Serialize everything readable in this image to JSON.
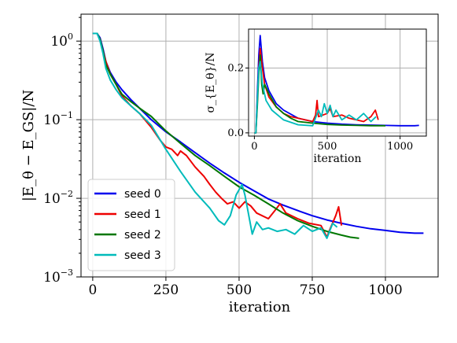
{
  "chart_data": [
    {
      "type": "line",
      "ylabel": "|E_θ − E_GS|/N",
      "xlabel": "iteration",
      "y_scale": "log",
      "xlim": [
        -40,
        1180
      ],
      "ylim": [
        0.001,
        2.2
      ],
      "xticks": [
        "0",
        "250",
        "500",
        "750",
        "1000"
      ],
      "yticks": [
        {
          "base": "10",
          "exp": "0"
        },
        {
          "base": "10",
          "exp": "−1"
        },
        {
          "base": "10",
          "exp": "−2"
        },
        {
          "base": "10",
          "exp": "−3"
        }
      ],
      "grid": true,
      "legend_position": "lower-left",
      "series": [
        {
          "name": "seed 0",
          "color": "#0000ee",
          "points": [
            [
              0,
              1.25
            ],
            [
              15,
              1.25
            ],
            [
              25,
              1.1
            ],
            [
              35,
              0.8
            ],
            [
              45,
              0.55
            ],
            [
              60,
              0.4
            ],
            [
              80,
              0.3
            ],
            [
              100,
              0.24
            ],
            [
              130,
              0.18
            ],
            [
              160,
              0.14
            ],
            [
              200,
              0.1
            ],
            [
              250,
              0.07
            ],
            [
              300,
              0.052
            ],
            [
              350,
              0.038
            ],
            [
              400,
              0.028
            ],
            [
              450,
              0.021
            ],
            [
              500,
              0.016
            ],
            [
              550,
              0.0125
            ],
            [
              600,
              0.0098
            ],
            [
              650,
              0.0082
            ],
            [
              700,
              0.007
            ],
            [
              750,
              0.006
            ],
            [
              800,
              0.0053
            ],
            [
              850,
              0.0048
            ],
            [
              900,
              0.0044
            ],
            [
              950,
              0.0041
            ],
            [
              1000,
              0.0039
            ],
            [
              1050,
              0.0037
            ],
            [
              1100,
              0.0036
            ],
            [
              1130,
              0.0036
            ]
          ]
        },
        {
          "name": "seed 1",
          "color": "#ee0000",
          "points": [
            [
              0,
              1.25
            ],
            [
              15,
              1.25
            ],
            [
              25,
              1.05
            ],
            [
              35,
              0.75
            ],
            [
              45,
              0.55
            ],
            [
              60,
              0.38
            ],
            [
              80,
              0.28
            ],
            [
              100,
              0.2
            ],
            [
              130,
              0.15
            ],
            [
              160,
              0.12
            ],
            [
              200,
              0.08
            ],
            [
              230,
              0.055
            ],
            [
              250,
              0.045
            ],
            [
              270,
              0.042
            ],
            [
              290,
              0.035
            ],
            [
              300,
              0.04
            ],
            [
              320,
              0.035
            ],
            [
              350,
              0.025
            ],
            [
              380,
              0.019
            ],
            [
              400,
              0.015
            ],
            [
              420,
              0.012
            ],
            [
              440,
              0.01
            ],
            [
              460,
              0.0085
            ],
            [
              480,
              0.009
            ],
            [
              500,
              0.0075
            ],
            [
              520,
              0.009
            ],
            [
              540,
              0.008
            ],
            [
              560,
              0.0065
            ],
            [
              600,
              0.0055
            ],
            [
              620,
              0.0068
            ],
            [
              640,
              0.0085
            ],
            [
              660,
              0.0065
            ],
            [
              700,
              0.0055
            ],
            [
              740,
              0.0048
            ],
            [
              780,
              0.0045
            ],
            [
              800,
              0.0032
            ],
            [
              810,
              0.004
            ],
            [
              830,
              0.006
            ],
            [
              840,
              0.0078
            ],
            [
              850,
              0.0045
            ]
          ]
        },
        {
          "name": "seed 2",
          "color": "#007700",
          "points": [
            [
              0,
              1.25
            ],
            [
              15,
              1.25
            ],
            [
              25,
              1.05
            ],
            [
              35,
              0.75
            ],
            [
              45,
              0.5
            ],
            [
              60,
              0.38
            ],
            [
              80,
              0.28
            ],
            [
              100,
              0.21
            ],
            [
              130,
              0.17
            ],
            [
              160,
              0.14
            ],
            [
              200,
              0.11
            ],
            [
              250,
              0.072
            ],
            [
              300,
              0.05
            ],
            [
              350,
              0.035
            ],
            [
              400,
              0.026
            ],
            [
              450,
              0.019
            ],
            [
              500,
              0.014
            ],
            [
              550,
              0.011
            ],
            [
              600,
              0.0085
            ],
            [
              650,
              0.0065
            ],
            [
              700,
              0.0052
            ],
            [
              750,
              0.0044
            ],
            [
              800,
              0.0038
            ],
            [
              850,
              0.0034
            ],
            [
              880,
              0.0032
            ],
            [
              910,
              0.0031
            ]
          ]
        },
        {
          "name": "seed 3",
          "color": "#00bbbb",
          "points": [
            [
              0,
              1.25
            ],
            [
              15,
              1.25
            ],
            [
              25,
              1.0
            ],
            [
              35,
              0.7
            ],
            [
              45,
              0.45
            ],
            [
              60,
              0.32
            ],
            [
              80,
              0.24
            ],
            [
              100,
              0.19
            ],
            [
              130,
              0.15
            ],
            [
              160,
              0.12
            ],
            [
              200,
              0.085
            ],
            [
              250,
              0.042
            ],
            [
              300,
              0.022
            ],
            [
              350,
              0.012
            ],
            [
              400,
              0.0075
            ],
            [
              430,
              0.0052
            ],
            [
              450,
              0.0046
            ],
            [
              470,
              0.006
            ],
            [
              490,
              0.011
            ],
            [
              510,
              0.015
            ],
            [
              520,
              0.011
            ],
            [
              530,
              0.007
            ],
            [
              545,
              0.0035
            ],
            [
              560,
              0.005
            ],
            [
              580,
              0.004
            ],
            [
              600,
              0.0042
            ],
            [
              630,
              0.0038
            ],
            [
              660,
              0.004
            ],
            [
              690,
              0.0035
            ],
            [
              720,
              0.0045
            ],
            [
              750,
              0.0038
            ],
            [
              780,
              0.0042
            ],
            [
              800,
              0.0031
            ],
            [
              820,
              0.0048
            ],
            [
              835,
              0.0043
            ]
          ]
        }
      ]
    },
    {
      "type": "line",
      "ylabel": "σ_{E_θ}/N",
      "xlabel": "iteration",
      "xlim": [
        -40,
        1180
      ],
      "ylim": [
        -0.01,
        0.32
      ],
      "xticks": [
        "0",
        "500",
        "1000"
      ],
      "yticks": [
        "0.0",
        "0.2"
      ],
      "grid": true,
      "series": [
        {
          "name": "seed 0",
          "color": "#0000ee",
          "points": [
            [
              0,
              0
            ],
            [
              10,
              0
            ],
            [
              20,
              0.12
            ],
            [
              30,
              0.24
            ],
            [
              40,
              0.3
            ],
            [
              55,
              0.22
            ],
            [
              70,
              0.17
            ],
            [
              100,
              0.13
            ],
            [
              150,
              0.09
            ],
            [
              200,
              0.07
            ],
            [
              300,
              0.045
            ],
            [
              400,
              0.035
            ],
            [
              500,
              0.03
            ],
            [
              600,
              0.027
            ],
            [
              700,
              0.025
            ],
            [
              800,
              0.024
            ],
            [
              900,
              0.023
            ],
            [
              1000,
              0.022
            ],
            [
              1100,
              0.022
            ],
            [
              1130,
              0.023
            ]
          ]
        },
        {
          "name": "seed 1",
          "color": "#ee0000",
          "points": [
            [
              0,
              0
            ],
            [
              10,
              0
            ],
            [
              20,
              0.1
            ],
            [
              30,
              0.2
            ],
            [
              40,
              0.26
            ],
            [
              55,
              0.2
            ],
            [
              70,
              0.15
            ],
            [
              100,
              0.11
            ],
            [
              150,
              0.08
            ],
            [
              200,
              0.06
            ],
            [
              250,
              0.05
            ],
            [
              300,
              0.045
            ],
            [
              350,
              0.04
            ],
            [
              400,
              0.035
            ],
            [
              420,
              0.055
            ],
            [
              430,
              0.1
            ],
            [
              440,
              0.05
            ],
            [
              500,
              0.06
            ],
            [
              520,
              0.075
            ],
            [
              540,
              0.05
            ],
            [
              600,
              0.055
            ],
            [
              650,
              0.045
            ],
            [
              700,
              0.04
            ],
            [
              750,
              0.035
            ],
            [
              800,
              0.05
            ],
            [
              830,
              0.07
            ],
            [
              850,
              0.04
            ]
          ]
        },
        {
          "name": "seed 2",
          "color": "#007700",
          "points": [
            [
              0,
              0
            ],
            [
              10,
              0
            ],
            [
              20,
              0.08
            ],
            [
              30,
              0.18
            ],
            [
              40,
              0.24
            ],
            [
              50,
              0.15
            ],
            [
              60,
              0.12
            ],
            [
              70,
              0.15
            ],
            [
              100,
              0.12
            ],
            [
              150,
              0.08
            ],
            [
              200,
              0.06
            ],
            [
              250,
              0.045
            ],
            [
              300,
              0.035
            ],
            [
              400,
              0.03
            ],
            [
              500,
              0.026
            ],
            [
              600,
              0.024
            ],
            [
              700,
              0.023
            ],
            [
              800,
              0.022
            ],
            [
              900,
              0.022
            ]
          ]
        },
        {
          "name": "seed 3",
          "color": "#00bbbb",
          "points": [
            [
              0,
              0
            ],
            [
              10,
              0
            ],
            [
              20,
              0.1
            ],
            [
              30,
              0.2
            ],
            [
              40,
              0.22
            ],
            [
              55,
              0.15
            ],
            [
              80,
              0.1
            ],
            [
              120,
              0.07
            ],
            [
              200,
              0.04
            ],
            [
              300,
              0.025
            ],
            [
              400,
              0.022
            ],
            [
              440,
              0.07
            ],
            [
              460,
              0.05
            ],
            [
              480,
              0.09
            ],
            [
              500,
              0.06
            ],
            [
              520,
              0.085
            ],
            [
              540,
              0.05
            ],
            [
              560,
              0.07
            ],
            [
              600,
              0.04
            ],
            [
              650,
              0.055
            ],
            [
              700,
              0.04
            ],
            [
              750,
              0.06
            ],
            [
              800,
              0.035
            ],
            [
              835,
              0.05
            ]
          ]
        }
      ]
    }
  ]
}
